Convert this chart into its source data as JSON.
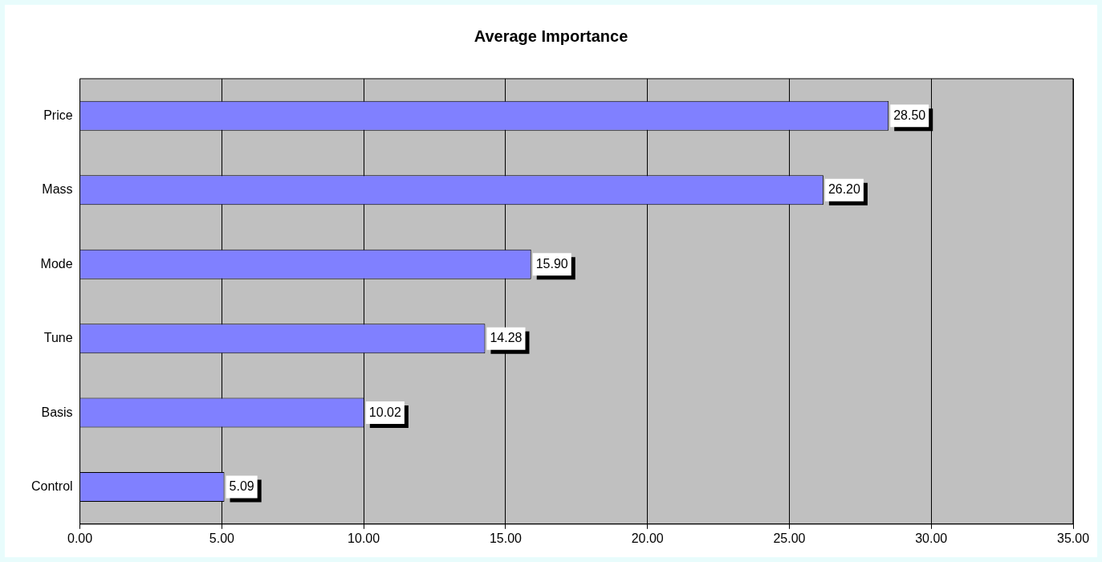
{
  "chart_data": {
    "type": "bar",
    "orientation": "horizontal",
    "title": "Average Importance",
    "categories": [
      "Price",
      "Mass",
      "Mode",
      "Tune",
      "Basis",
      "Control"
    ],
    "values": [
      28.5,
      26.2,
      15.9,
      14.28,
      10.02,
      5.09
    ],
    "value_labels": [
      "28.50",
      "26.20",
      "15.90",
      "14.28",
      "10.02",
      "5.09"
    ],
    "color": "#8080ff",
    "xlim": [
      0,
      35
    ],
    "xticks": [
      {
        "value": 0,
        "label": "0.00"
      },
      {
        "value": 5,
        "label": "5.00"
      },
      {
        "value": 10,
        "label": "10.00"
      },
      {
        "value": 15,
        "label": "15.00"
      },
      {
        "value": 20,
        "label": "20.00"
      },
      {
        "value": 25,
        "label": "25.00"
      },
      {
        "value": 30,
        "label": "30.00"
      },
      {
        "value": 35,
        "label": "35.00"
      }
    ],
    "grid": "x",
    "legend": false
  }
}
